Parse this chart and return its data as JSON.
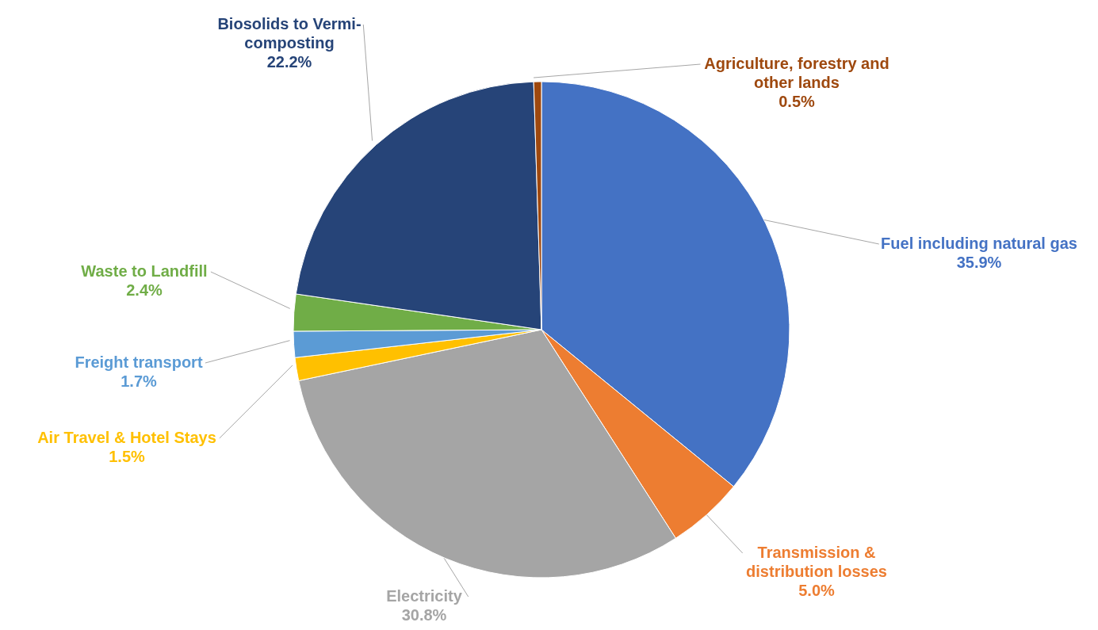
{
  "chart_data": {
    "type": "pie",
    "categories": [
      "Fuel including natural gas",
      "Transmission & distribution losses",
      "Electricity",
      "Air Travel & Hotel Stays",
      "Freight transport",
      "Waste to Landfill",
      "Biosolids to Vermi-composting",
      "Agriculture, forestry and other lands"
    ],
    "values": [
      35.9,
      5.0,
      30.8,
      1.5,
      1.7,
      2.4,
      22.2,
      0.5
    ],
    "colors": [
      "#4472c4",
      "#ed7d31",
      "#a5a5a5",
      "#ffc000",
      "#5b9bd5",
      "#70ad47",
      "#264478",
      "#9e480e"
    ],
    "value_labels": [
      "35.9%",
      "5.0%",
      "30.8%",
      "1.5%",
      "1.7%",
      "2.4%",
      "22.2%",
      "0.5%"
    ],
    "legend": false
  }
}
